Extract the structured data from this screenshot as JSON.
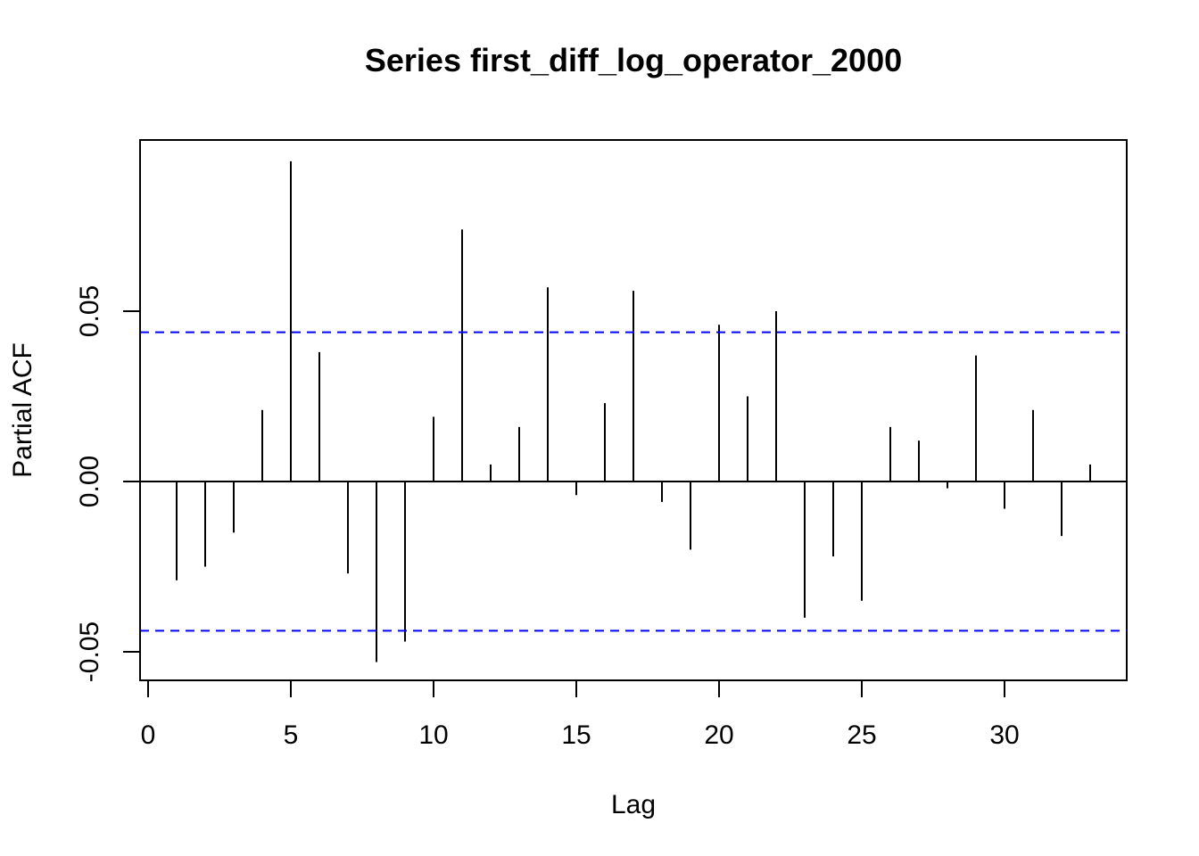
{
  "chart_data": {
    "type": "bar",
    "title": "Series  first_diff_log_operator_2000",
    "xlabel": "Lag",
    "ylabel": "Partial ACF",
    "xlim": [
      0,
      34
    ],
    "ylim": [
      -0.057,
      0.1
    ],
    "x_ticks": [
      0,
      5,
      10,
      15,
      20,
      25,
      30
    ],
    "y_ticks": [
      -0.05,
      0.0,
      0.05
    ],
    "y_tick_labels": [
      "-0.05",
      "0.00",
      "0.05"
    ],
    "confidence_bound": 0.0438,
    "confidence_line_color": "#0000ff",
    "bar_color": "#000000",
    "grid": false,
    "legend": "none",
    "x": [
      1,
      2,
      3,
      4,
      5,
      6,
      7,
      8,
      9,
      10,
      11,
      12,
      13,
      14,
      15,
      16,
      17,
      18,
      19,
      20,
      21,
      22,
      23,
      24,
      25,
      26,
      27,
      28,
      29,
      30,
      31,
      32,
      33
    ],
    "values": [
      -0.029,
      -0.025,
      -0.015,
      0.021,
      0.094,
      0.038,
      -0.027,
      -0.053,
      -0.047,
      0.019,
      0.074,
      0.005,
      0.016,
      0.057,
      -0.004,
      0.023,
      0.056,
      -0.006,
      -0.02,
      0.046,
      0.025,
      0.05,
      -0.04,
      -0.022,
      -0.035,
      0.016,
      0.012,
      -0.002,
      0.037,
      -0.008,
      0.021,
      -0.016,
      0.005
    ]
  }
}
